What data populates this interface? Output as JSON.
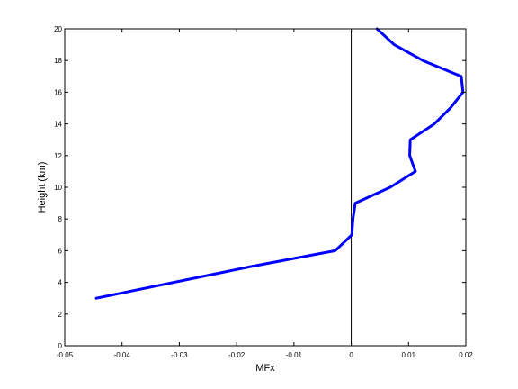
{
  "chart_data": {
    "type": "line",
    "title": "",
    "xlabel": "MFx",
    "ylabel": "Height (km)",
    "xlim": [
      -0.05,
      0.02
    ],
    "ylim": [
      0,
      20
    ],
    "xticks": [
      -0.05,
      -0.04,
      -0.03,
      -0.02,
      -0.01,
      0,
      0.01,
      0.02
    ],
    "xtick_labels": [
      "-0.05",
      "-0.04",
      "-0.03",
      "-0.02",
      "-0.01",
      "0",
      "0.01",
      "0.02"
    ],
    "yticks": [
      0,
      2,
      4,
      6,
      8,
      10,
      12,
      14,
      16,
      18,
      20
    ],
    "ytick_labels": [
      "0",
      "2",
      "4",
      "6",
      "8",
      "10",
      "12",
      "14",
      "16",
      "18",
      "20"
    ],
    "grid": false,
    "reference_line": {
      "x": 0,
      "color": "#000000"
    },
    "series": [
      {
        "color": "#0000ff",
        "points": [
          [
            -0.0445,
            3.0
          ],
          [
            -0.0175,
            5.0
          ],
          [
            -0.0028,
            6.0
          ],
          [
            0.0001,
            7.0
          ],
          [
            0.0003,
            8.0
          ],
          [
            0.0007,
            9.0
          ],
          [
            0.0068,
            10.0
          ],
          [
            0.0112,
            11.0
          ],
          [
            0.0102,
            12.0
          ],
          [
            0.0103,
            13.0
          ],
          [
            0.0145,
            14.0
          ],
          [
            0.0173,
            15.0
          ],
          [
            0.0195,
            16.0
          ],
          [
            0.0192,
            17.0
          ],
          [
            0.0125,
            18.0
          ],
          [
            0.0075,
            19.0
          ],
          [
            0.0045,
            20.0
          ]
        ]
      }
    ]
  }
}
